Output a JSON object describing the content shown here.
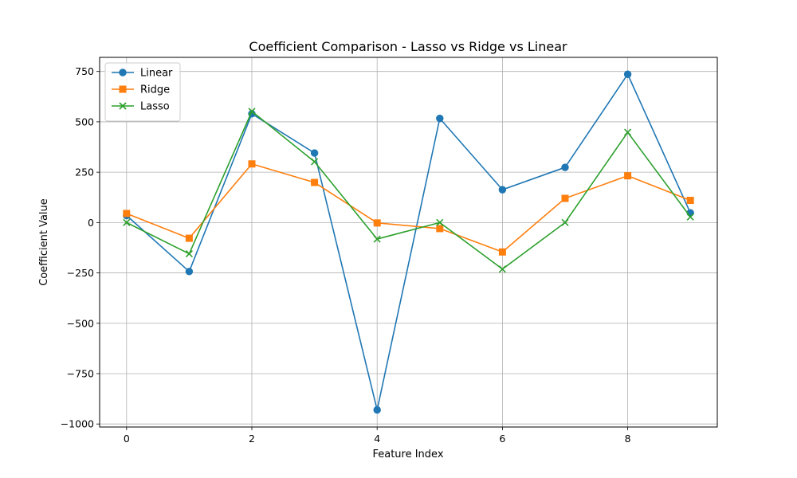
{
  "chart_data": {
    "type": "line",
    "title": "Coefficient Comparison - Lasso vs Ridge vs Linear",
    "xlabel": "Feature Index",
    "ylabel": "Coefficient Value",
    "x": [
      0,
      1,
      2,
      3,
      4,
      5,
      6,
      7,
      8,
      9
    ],
    "xlim": [
      -0.43,
      9.43
    ],
    "ylim": [
      -1015,
      820
    ],
    "xticks": [
      0,
      2,
      4,
      6,
      8
    ],
    "yticks": [
      750,
      500,
      250,
      0,
      -250,
      -500,
      -750,
      -1000
    ],
    "xtick_labels": [
      "0",
      "2",
      "4",
      "6",
      "8"
    ],
    "ytick_labels": [
      "750",
      "500",
      "250",
      "0",
      "−250",
      "−500",
      "−750",
      "−1000"
    ],
    "grid": true,
    "legend_position": "top-left",
    "series": [
      {
        "name": "Linear",
        "color": "#1f77b4",
        "marker": "circle",
        "values": [
          35,
          -243,
          540,
          345,
          -930,
          517,
          163,
          274,
          736,
          48
        ]
      },
      {
        "name": "Ridge",
        "color": "#ff7f0e",
        "marker": "square",
        "values": [
          45,
          -78,
          291,
          199,
          -2,
          -30,
          -146,
          120,
          232,
          110
        ]
      },
      {
        "name": "Lasso",
        "color": "#2ca02c",
        "marker": "x",
        "values": [
          0,
          -155,
          552,
          302,
          -82,
          0,
          -231,
          0,
          448,
          28
        ]
      }
    ]
  }
}
